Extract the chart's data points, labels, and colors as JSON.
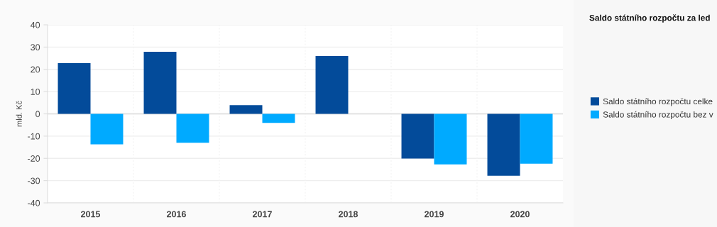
{
  "chart_data": {
    "type": "bar",
    "title": "Saldo státního rozpočtu za led",
    "ylabel": "mld. Kč",
    "categories": [
      "2015",
      "2016",
      "2017",
      "2018",
      "2019",
      "2020"
    ],
    "series": [
      {
        "name": "Saldo státního rozpočtu celke",
        "color": "#034b9a",
        "values": [
          22.8,
          27.9,
          3.9,
          26.0,
          -20.1,
          -27.8
        ]
      },
      {
        "name": "Saldo státního rozpočtu bez v",
        "color": "#00aaff",
        "values": [
          -13.7,
          -13.0,
          -4.1,
          null,
          -22.7,
          -22.4
        ]
      }
    ],
    "ylim": [
      -40,
      40
    ],
    "yticks": [
      -40,
      -30,
      -20,
      -10,
      0,
      10,
      20,
      30,
      40
    ],
    "grid": "y",
    "legend": "right"
  }
}
